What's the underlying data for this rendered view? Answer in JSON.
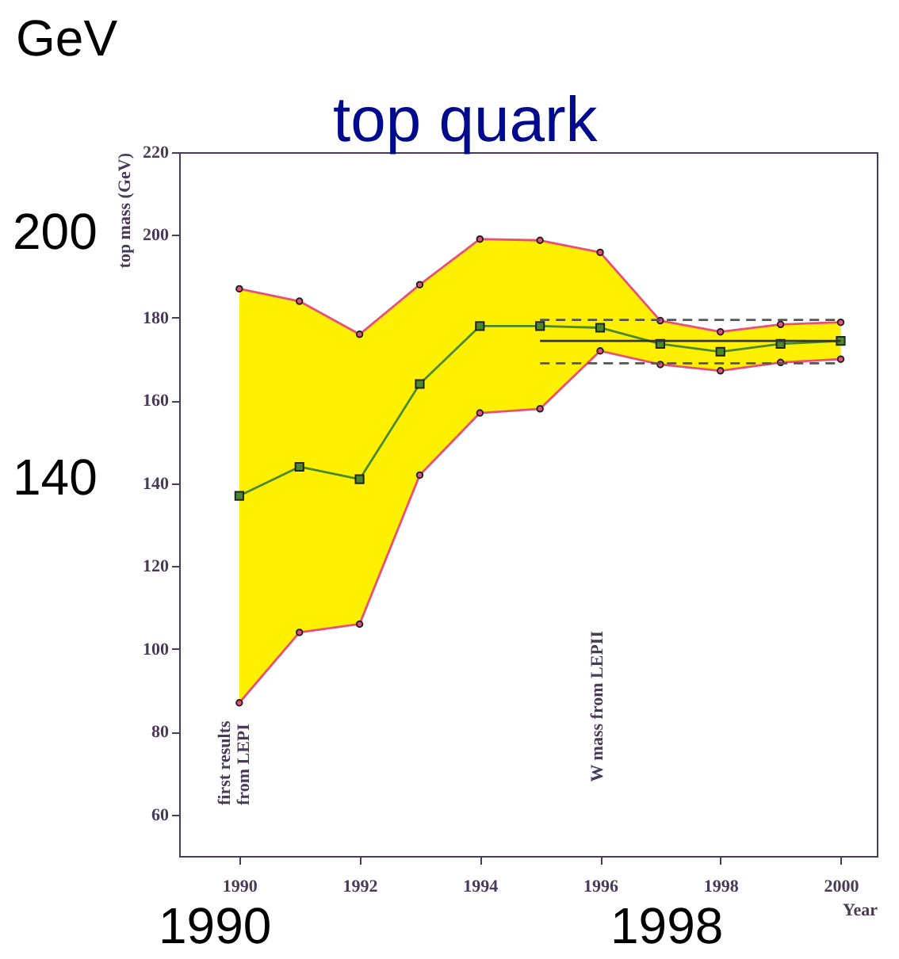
{
  "chart_data": {
    "type": "line",
    "title": "top quark",
    "xlabel": "Year",
    "ylabel": "top mass (GeV)",
    "x": [
      1990,
      1991,
      1992,
      1993,
      1994,
      1995,
      1996,
      1997,
      1998,
      1999,
      2000
    ],
    "series": [
      {
        "color": "#4a8a2a",
        "marker": "square",
        "values": [
          137,
          144,
          141,
          164,
          178,
          178,
          177.6,
          173.7,
          171.8,
          173.7,
          174.4
        ],
        "lower": [
          87,
          104,
          106,
          142,
          157,
          158,
          172,
          168.7,
          167.2,
          169.2,
          170
        ],
        "upper": [
          187,
          184,
          176,
          188,
          199,
          198.7,
          195.8,
          179.3,
          176.6,
          178.4,
          178.9
        ]
      },
      {
        "color": "#e8507a",
        "marker": "circle",
        "values": [
          187,
          184,
          176,
          188,
          199,
          198.7,
          195.8,
          179.3,
          176.6,
          178.4,
          178.9
        ]
      },
      {
        "color": "#e8507a",
        "marker": "circle",
        "values": [
          87,
          104,
          106,
          142,
          157,
          158,
          172,
          168.7,
          167.2,
          169.2,
          170
        ]
      },
      {
        "type": "line",
        "color": "#333333",
        "marker": "none",
        "values": [
          null,
          null,
          null,
          null,
          null,
          174.4,
          174.4,
          174.4,
          174.4,
          174.4,
          174.4
        ]
      },
      {
        "type": "line",
        "color": "#555555",
        "marker": "none",
        "line_style": "dashed",
        "values": [
          null,
          null,
          null,
          null,
          null,
          179.5,
          179.5,
          179.5,
          179.5,
          179.5,
          179.5
        ]
      },
      {
        "type": "line",
        "color": "#555555",
        "marker": "none",
        "line_style": "dashed",
        "values": [
          null,
          null,
          null,
          null,
          null,
          169,
          169,
          169,
          169,
          169,
          169
        ]
      }
    ],
    "xlim": [
      1989,
      2000.6
    ],
    "xticks": [
      1990,
      1992,
      1994,
      1996,
      1998,
      2000
    ],
    "ylim": [
      50,
      220
    ],
    "yticks": [
      60,
      80,
      100,
      120,
      140,
      160,
      180,
      200,
      220
    ],
    "annotations": [
      "first results from LEPI",
      "W mass from LEPII",
      "GeV",
      "200",
      "140",
      "1990",
      "1998"
    ]
  }
}
